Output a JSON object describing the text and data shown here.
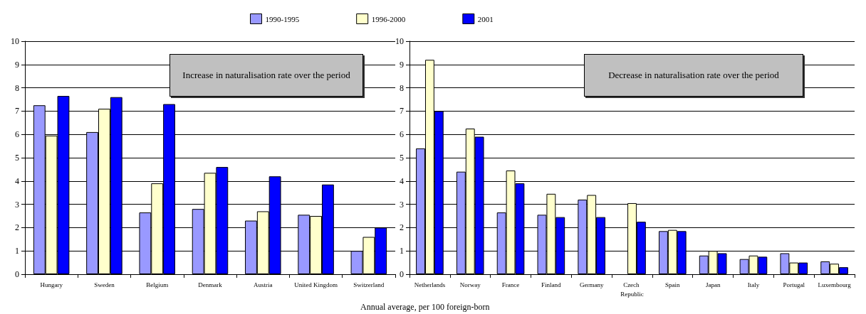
{
  "chart_data": [
    {
      "type": "bar",
      "categories": [
        "Hungary",
        "Sweden",
        "Belgium",
        "Denmark",
        "Austria",
        "United Kingdom",
        "Switzerland"
      ],
      "series": [
        {
          "name": "1990-1995",
          "color": "#9999ff",
          "values": [
            7.25,
            6.1,
            2.65,
            2.8,
            2.3,
            2.55,
            1.0
          ]
        },
        {
          "name": "1996-2000",
          "color": "#ffffcc",
          "values": [
            5.95,
            7.1,
            3.9,
            4.35,
            2.7,
            2.5,
            1.6
          ]
        },
        {
          "name": "2001",
          "color": "#0000ff",
          "values": [
            7.65,
            7.6,
            7.3,
            4.6,
            4.2,
            3.85,
            2.0
          ]
        }
      ],
      "ylim": [
        0,
        10
      ],
      "yticks": [
        0,
        1,
        2,
        3,
        4,
        5,
        6,
        7,
        8,
        9,
        10
      ],
      "grid": "y",
      "legend": "top",
      "annotations": [
        "Increase in naturalisation rate over the period"
      ]
    },
    {
      "type": "bar",
      "categories": [
        "Netherlands",
        "Norway",
        "France",
        "Finland",
        "Germany",
        "Czech Republic",
        "Spain",
        "Japan",
        "Italy",
        "Portugal",
        "Luxembourg"
      ],
      "series": [
        {
          "color": "#9999ff",
          "values": [
            5.4,
            4.4,
            2.65,
            2.55,
            3.2,
            null,
            1.85,
            0.8,
            0.65,
            0.9,
            0.55
          ]
        },
        {
          "color": "#ffffcc",
          "values": [
            9.2,
            6.25,
            4.45,
            3.45,
            3.4,
            3.05,
            1.9,
            1.0,
            0.8,
            0.5,
            0.45
          ]
        },
        {
          "color": "#0000ff",
          "values": [
            7.0,
            5.9,
            3.9,
            2.45,
            2.45,
            2.25,
            1.85,
            0.9,
            0.75,
            0.5,
            0.3
          ]
        }
      ],
      "ylim": [
        0,
        10
      ],
      "yticks": [
        0,
        1,
        2,
        3,
        4,
        5,
        6,
        7,
        8,
        9,
        10
      ],
      "grid": "y",
      "annotations": [
        "Decrease in naturalisation rate over the period",
        "Annual average, per 100 foreign-born"
      ]
    }
  ]
}
